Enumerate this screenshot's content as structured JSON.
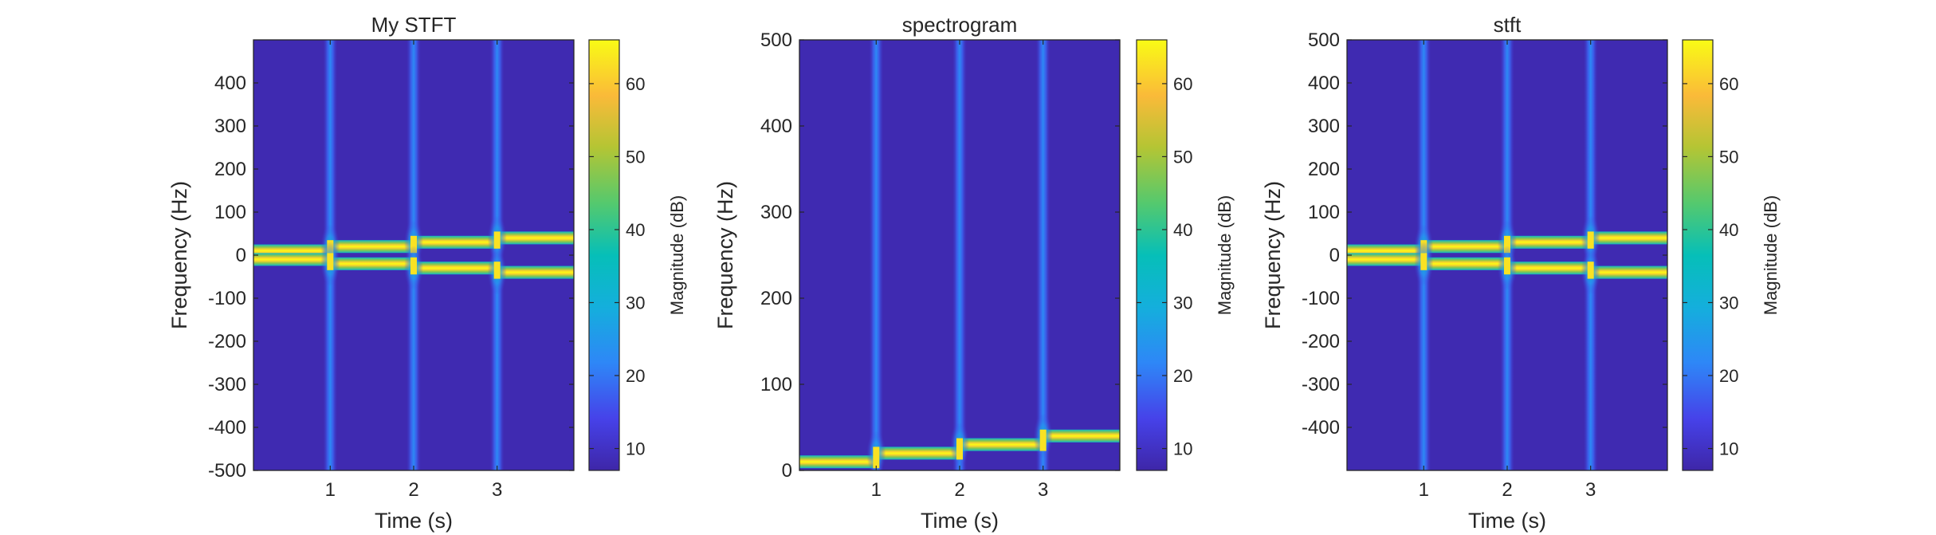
{
  "chart_data": [
    {
      "type": "heatmap",
      "title": "My STFT",
      "xlabel": "Time (s)",
      "ylabel": "Frequency (Hz)",
      "xlim": [
        0.08,
        3.92
      ],
      "ylim": [
        -500,
        500
      ],
      "xticks": [
        1,
        2,
        3
      ],
      "xtick_labels": [
        "1",
        "2",
        "3"
      ],
      "yticks": [
        -500,
        -400,
        -300,
        -200,
        -100,
        0,
        100,
        200,
        300,
        400
      ],
      "ytick_labels": [
        "-500",
        "-400",
        "-300",
        "-200",
        "-100",
        "0",
        "100",
        "200",
        "300",
        "400"
      ],
      "colorbar": {
        "label": "Magnitude (dB)",
        "range": [
          7,
          66
        ],
        "ticks": [
          10,
          20,
          30,
          40,
          50,
          60
        ],
        "tick_labels": [
          "10",
          "20",
          "30",
          "40",
          "50",
          "60"
        ]
      },
      "background_db": 8,
      "tracks": [
        {
          "name": "positive frequency",
          "segments": [
            {
              "t0": 0,
              "t1": 1,
              "freq": 10,
              "db": 66
            },
            {
              "t0": 1,
              "t1": 2,
              "freq": 20,
              "db": 66
            },
            {
              "t0": 2,
              "t1": 3,
              "freq": 30,
              "db": 66
            },
            {
              "t0": 3,
              "t1": 4,
              "freq": 40,
              "db": 66
            }
          ]
        },
        {
          "name": "negative frequency",
          "segments": [
            {
              "t0": 0,
              "t1": 1,
              "freq": -10,
              "db": 66
            },
            {
              "t0": 1,
              "t1": 2,
              "freq": -20,
              "db": 66
            },
            {
              "t0": 2,
              "t1": 3,
              "freq": -30,
              "db": 66
            },
            {
              "t0": 3,
              "t1": 4,
              "freq": -40,
              "db": 66
            }
          ]
        }
      ],
      "transients": [
        1,
        2,
        3
      ]
    },
    {
      "type": "heatmap",
      "title": "spectrogram",
      "xlabel": "Time (s)",
      "ylabel": "Frequency (Hz)",
      "xlim": [
        0.08,
        3.92
      ],
      "ylim": [
        0,
        500
      ],
      "xticks": [
        1,
        2,
        3
      ],
      "xtick_labels": [
        "1",
        "2",
        "3"
      ],
      "yticks": [
        0,
        100,
        200,
        300,
        400,
        500
      ],
      "ytick_labels": [
        "0",
        "100",
        "200",
        "300",
        "400",
        "500"
      ],
      "colorbar": {
        "label": "Magnitude (dB)",
        "range": [
          7,
          66
        ],
        "ticks": [
          10,
          20,
          30,
          40,
          50,
          60
        ],
        "tick_labels": [
          "10",
          "20",
          "30",
          "40",
          "50",
          "60"
        ]
      },
      "background_db": 8,
      "tracks": [
        {
          "name": "positive frequency",
          "segments": [
            {
              "t0": 0,
              "t1": 1,
              "freq": 10,
              "db": 66
            },
            {
              "t0": 1,
              "t1": 2,
              "freq": 20,
              "db": 66
            },
            {
              "t0": 2,
              "t1": 3,
              "freq": 30,
              "db": 66
            },
            {
              "t0": 3,
              "t1": 4,
              "freq": 40,
              "db": 66
            }
          ]
        }
      ],
      "transients": [
        1,
        2,
        3
      ]
    },
    {
      "type": "heatmap",
      "title": "stft",
      "xlabel": "Time (s)",
      "ylabel": "Frequency (Hz)",
      "xlim": [
        0.08,
        3.92
      ],
      "ylim": [
        -500,
        500
      ],
      "xticks": [
        1,
        2,
        3
      ],
      "xtick_labels": [
        "1",
        "2",
        "3"
      ],
      "yticks": [
        -400,
        -300,
        -200,
        -100,
        0,
        100,
        200,
        300,
        400,
        500
      ],
      "ytick_labels": [
        "-400",
        "-300",
        "-200",
        "-100",
        "0",
        "100",
        "200",
        "300",
        "400",
        "500"
      ],
      "colorbar": {
        "label": "Magnitude (dB)",
        "range": [
          7,
          66
        ],
        "ticks": [
          10,
          20,
          30,
          40,
          50,
          60
        ],
        "tick_labels": [
          "10",
          "20",
          "30",
          "40",
          "50",
          "60"
        ]
      },
      "background_db": 8,
      "tracks": [
        {
          "name": "positive frequency",
          "segments": [
            {
              "t0": 0,
              "t1": 1,
              "freq": 10,
              "db": 66
            },
            {
              "t0": 1,
              "t1": 2,
              "freq": 20,
              "db": 66
            },
            {
              "t0": 2,
              "t1": 3,
              "freq": 30,
              "db": 66
            },
            {
              "t0": 3,
              "t1": 4,
              "freq": 40,
              "db": 66
            }
          ]
        },
        {
          "name": "negative frequency",
          "segments": [
            {
              "t0": 0,
              "t1": 1,
              "freq": -10,
              "db": 66
            },
            {
              "t0": 1,
              "t1": 2,
              "freq": -20,
              "db": 66
            },
            {
              "t0": 2,
              "t1": 3,
              "freq": -30,
              "db": 66
            },
            {
              "t0": 3,
              "t1": 4,
              "freq": -40,
              "db": 66
            }
          ]
        }
      ],
      "transients": [
        1,
        2,
        3
      ]
    }
  ],
  "colors": {
    "background": "#3E26A8",
    "axis": "#262626",
    "colormap": "parula"
  }
}
